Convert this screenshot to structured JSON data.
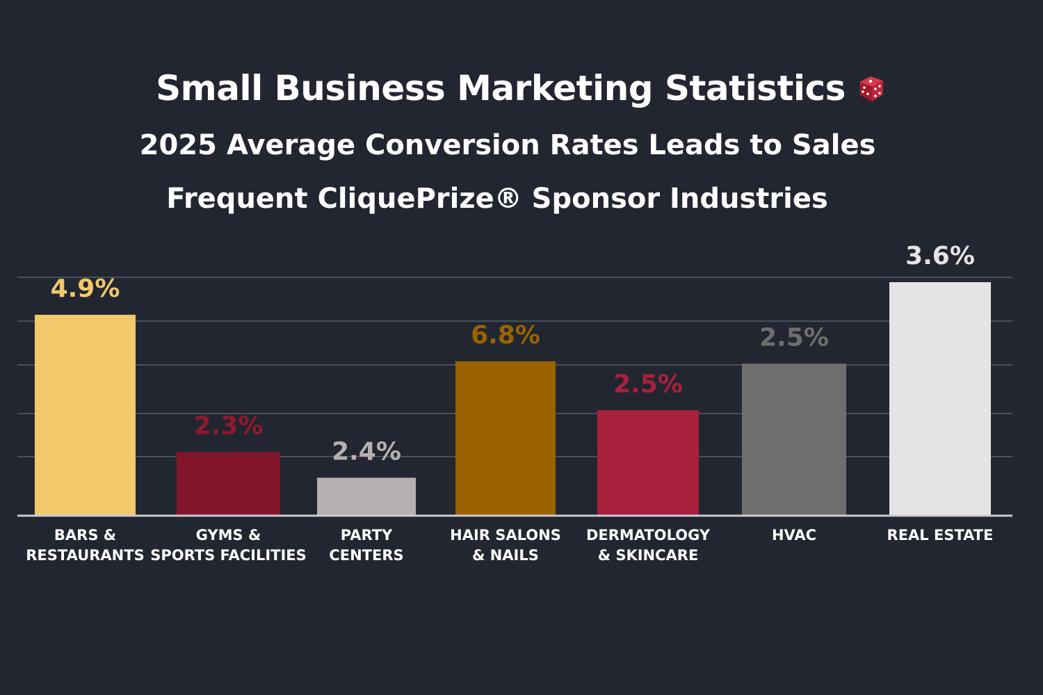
{
  "chart_data": {
    "type": "bar",
    "title": "Small Business Marketing Statistics",
    "subtitle": "2025 Average Conversion Rates Leads to Sales",
    "subtitle2": "Frequent CliquePrize® Sponsor Industries",
    "categories": [
      [
        "BARS &",
        "RESTAURANTS"
      ],
      [
        "GYMS &",
        "SPORTS FACILITIES"
      ],
      [
        "PARTY",
        "CENTERS"
      ],
      [
        "HAIR SALONS",
        "& NAILS"
      ],
      [
        "DERMATOLOGY",
        "& SKINCARE"
      ],
      [
        "HVAC"
      ],
      [
        "REAL ESTATE"
      ]
    ],
    "values": [
      4.9,
      2.3,
      2.4,
      6.8,
      2.5,
      2.5,
      3.6
    ],
    "value_labels": [
      "4.9%",
      "2.3%",
      "2.4%",
      "6.8%",
      "2.5%",
      "2.5%",
      "3.6%"
    ],
    "bar_colors": [
      "#f2c86a",
      "#82142c",
      "#b5b1b1",
      "#9a6200",
      "#a8213c",
      "#6e6e6e",
      "#e6e3e4"
    ],
    "label_colors": [
      "#f2c86a",
      "#92182e",
      "#b5b1b1",
      "#9a6200",
      "#a8213c",
      "#6e6e6e",
      "#e6e3e4"
    ],
    "bar_heights_relative": [
      0.86,
      0.27,
      0.16,
      0.66,
      0.45,
      0.65,
      1.0
    ],
    "grid": true,
    "legend": "none"
  },
  "icons": {
    "title_icon": "dice-icon"
  }
}
